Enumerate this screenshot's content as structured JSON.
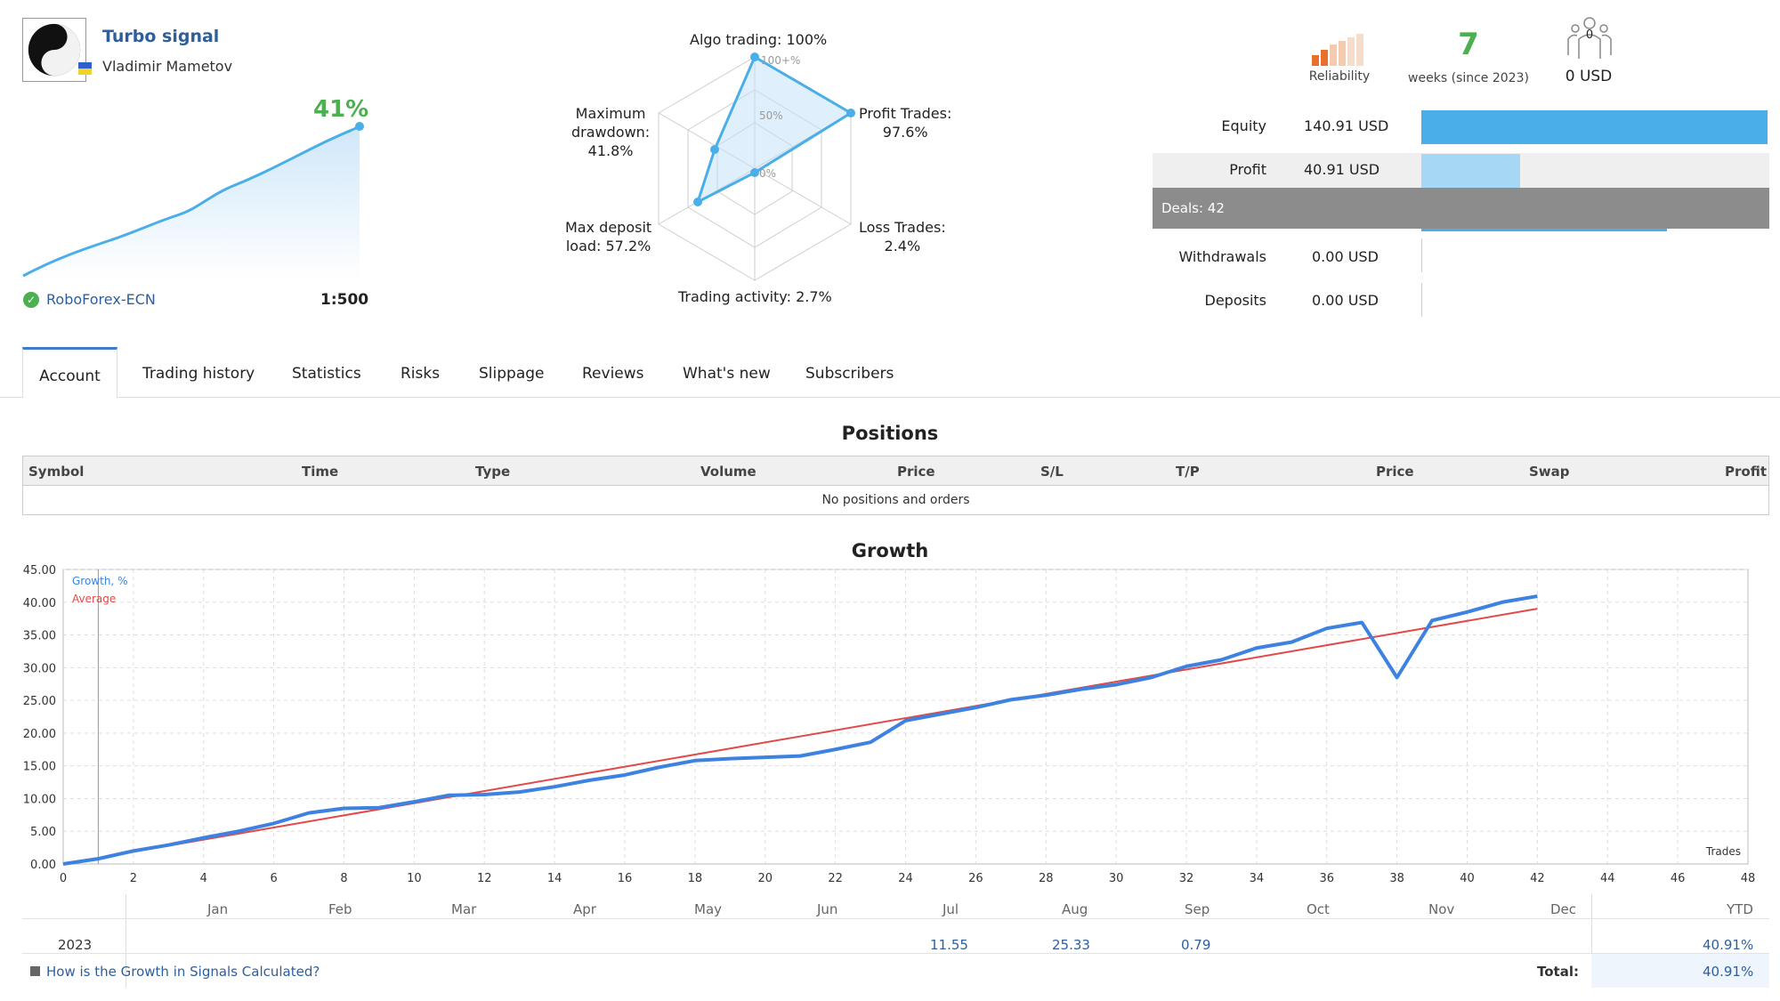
{
  "header": {
    "title": "Turbo signal",
    "author": "Vladimir Mametov",
    "growth": "41%",
    "broker": "RoboForex-ECN",
    "leverage": "1:500"
  },
  "radar": {
    "algo": "Algo trading: 100%",
    "profit_trades": "Profit Trades:",
    "profit_trades_val": "97.6%",
    "loss_trades": "Loss Trades:",
    "loss_trades_val": "2.4%",
    "activity": "Trading activity: 2.7%",
    "deposit_load": "Max deposit",
    "deposit_load2": "load: 57.2%",
    "drawdown": "Maximum",
    "drawdown2": "drawdown:",
    "drawdown_val": "41.8%",
    "tick_100": "100+%",
    "tick_50": "50%",
    "tick_0": "0%"
  },
  "stats": {
    "reliability": "Reliability",
    "weeks_num": "7",
    "weeks_label": "weeks (since 2023)",
    "subscribers_count": "0",
    "subscribers_usd": "0 USD",
    "equity_label": "Equity",
    "equity_val": "140.91 USD",
    "profit_label": "Profit",
    "profit_val": "40.91 USD",
    "deals": "Deals: 42",
    "withdrawals_label": "Withdrawals",
    "withdrawals_val": "0.00 USD",
    "deposits_label": "Deposits",
    "deposits_val": "0.00 USD"
  },
  "tabs": [
    "Account",
    "Trading history",
    "Statistics",
    "Risks",
    "Slippage",
    "Reviews",
    "What's new",
    "Subscribers"
  ],
  "positions": {
    "title": "Positions",
    "columns": [
      "Symbol",
      "Time",
      "Type",
      "Volume",
      "Price",
      "S/L",
      "T/P",
      "Price",
      "Swap",
      "Profit"
    ],
    "empty": "No positions and orders"
  },
  "chart_data": {
    "type": "line",
    "title": "Growth",
    "xlabel": "Trades",
    "ylabel": "",
    "xlim": [
      0,
      48
    ],
    "ylim": [
      0,
      45
    ],
    "x_ticks": [
      0,
      2,
      4,
      6,
      8,
      10,
      12,
      14,
      16,
      18,
      20,
      22,
      24,
      26,
      28,
      30,
      32,
      34,
      36,
      38,
      40,
      42,
      44,
      46,
      48
    ],
    "y_ticks": [
      "0.00",
      "5.00",
      "10.00",
      "15.00",
      "20.00",
      "25.00",
      "30.00",
      "35.00",
      "40.00",
      "45.00"
    ],
    "grid": true,
    "legend": "top-left",
    "series": [
      {
        "name": "Growth, %",
        "color": "#3d82e0",
        "x": [
          0,
          1,
          2,
          3,
          4,
          5,
          6,
          7,
          8,
          9,
          10,
          11,
          12,
          13,
          14,
          15,
          16,
          17,
          18,
          19,
          20,
          21,
          22,
          23,
          24,
          25,
          26,
          27,
          28,
          29,
          30,
          31,
          32,
          33,
          34,
          35,
          36,
          37,
          38,
          39,
          40,
          41,
          42
        ],
        "values": [
          0,
          0.8,
          2.0,
          2.9,
          4.0,
          5.0,
          6.2,
          7.8,
          8.5,
          8.6,
          9.5,
          10.5,
          10.6,
          11.0,
          11.8,
          12.8,
          13.6,
          14.8,
          15.8,
          16.1,
          16.3,
          16.5,
          17.5,
          18.6,
          21.9,
          22.9,
          23.9,
          25.1,
          25.8,
          26.7,
          27.4,
          28.5,
          30.2,
          31.2,
          33.0,
          33.9,
          36.0,
          36.9,
          28.5,
          37.2,
          38.5,
          40.0,
          40.91
        ]
      },
      {
        "name": "Average",
        "color": "#e24a4a",
        "x": [
          0,
          42
        ],
        "values": [
          0,
          39.0
        ]
      }
    ]
  },
  "monthly": {
    "months": [
      "Jan",
      "Feb",
      "Mar",
      "Apr",
      "May",
      "Jun",
      "Jul",
      "Aug",
      "Sep",
      "Oct",
      "Nov",
      "Dec",
      "YTD"
    ],
    "year": "2023",
    "jul": "11.55",
    "aug": "25.33",
    "sep": "0.79",
    "ytd": "40.91%",
    "help": "How is the Growth in Signals Calculated?",
    "total_label": "Total:",
    "total": "40.91%"
  },
  "colors": {
    "accent": "#3e7cc7",
    "link": "#2e5f9c",
    "green": "#4caf50",
    "equity_bar": "#4aaee8",
    "profit_bar": "#a6d8f5"
  }
}
